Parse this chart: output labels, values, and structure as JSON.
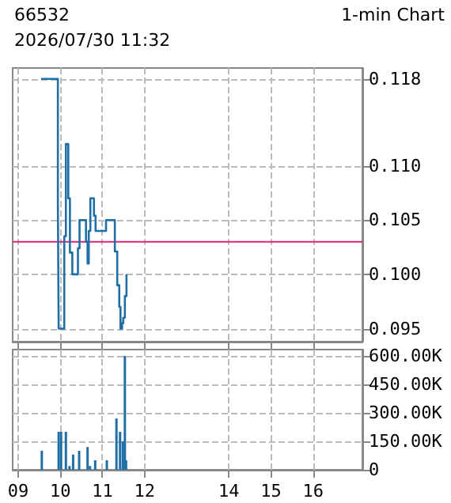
{
  "chart_data": [
    {
      "type": "step",
      "title": "66532",
      "annotations": [
        "1-min Chart",
        "2026/07/30 11:32"
      ],
      "x": [
        9.543,
        9.943,
        9.962,
        10.095,
        10.133,
        10.19,
        10.229,
        10.286,
        10.419,
        10.457,
        10.61,
        10.648,
        10.676,
        10.714,
        10.8,
        10.838,
        11.086,
        11.295,
        11.352,
        11.4,
        11.429,
        11.467,
        11.495,
        11.533,
        11.571
      ],
      "values": [
        0.118,
        0.1065,
        0.095,
        0.1035,
        0.112,
        0.107,
        0.102,
        0.1,
        0.1024,
        0.105,
        0.103,
        0.101,
        0.104,
        0.107,
        0.1054,
        0.104,
        0.105,
        0.1021,
        0.099,
        0.097,
        0.095,
        0.0955,
        0.096,
        0.098,
        0.1
      ],
      "color": "#1f6fa6",
      "marker": "none",
      "xlim": [
        8.87,
        17.17
      ],
      "xticks": [
        9,
        10,
        11,
        12,
        14,
        15,
        16
      ],
      "ylim": [
        0.0938,
        0.119
      ],
      "yticks": [
        0.095,
        {
          "value": 0.1,
          "label": "0.100"
        },
        0.105,
        {
          "value": 0.11,
          "label": "0.110"
        },
        0.118
      ],
      "ref_lines": [
        {
          "axis": "y",
          "value": 0.103,
          "color": "#e0207a"
        }
      ],
      "grid": true,
      "tick_labels": "y"
    },
    {
      "type": "bar",
      "x": [
        9.562,
        9.962,
        10.019,
        10.133,
        10.219,
        10.305,
        10.448,
        10.648,
        10.705,
        10.829,
        11.105,
        11.333,
        11.419,
        11.486,
        11.533,
        11.562
      ],
      "values": [
        100000,
        200000,
        200000,
        200000,
        20000,
        80000,
        100000,
        120000,
        20000,
        50000,
        50000,
        270000,
        200000,
        150000,
        600000,
        50000
      ],
      "color": "#1f6fa6",
      "xlim": [
        8.87,
        17.17
      ],
      "xticks": [
        {
          "value": 9,
          "label": "09"
        },
        10,
        11,
        12,
        14,
        15,
        16
      ],
      "ylim": [
        0,
        633000
      ],
      "yticks": [
        0,
        {
          "value": 150000,
          "label": "150.00K"
        },
        {
          "value": 300000,
          "label": "300.00K"
        },
        {
          "value": 450000,
          "label": "450.00K"
        },
        {
          "value": 600000,
          "label": "600.00K"
        }
      ],
      "grid": true
    }
  ]
}
